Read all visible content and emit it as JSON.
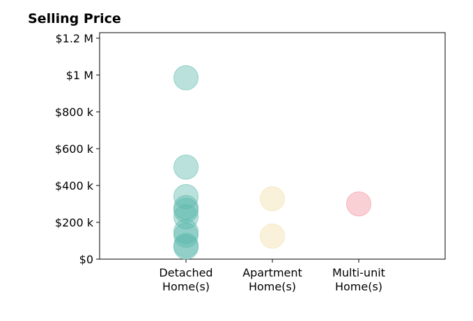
{
  "chart_data": {
    "type": "scatter",
    "title": "Selling Price",
    "xlabel": "",
    "ylabel": "",
    "ylim": [
      0,
      1230000
    ],
    "y_ticks": [
      {
        "value": 0,
        "label": "$0"
      },
      {
        "value": 200000,
        "label": "$200 k"
      },
      {
        "value": 400000,
        "label": "$400 k"
      },
      {
        "value": 600000,
        "label": "$600 k"
      },
      {
        "value": 800000,
        "label": "$800 k"
      },
      {
        "value": 1000000,
        "label": "$1 M"
      },
      {
        "value": 1200000,
        "label": "$1.2 M"
      }
    ],
    "categories": [
      [
        "Detached",
        "Home(s)"
      ],
      [
        "Apartment",
        "Home(s)"
      ],
      [
        "Multi-unit",
        "Home(s)"
      ]
    ],
    "grid": false,
    "series": [
      {
        "category_index": 0,
        "color": "#5bb8ac",
        "values": [
          985000,
          500000,
          340000,
          280000,
          265000,
          230000,
          150000,
          130000,
          75000,
          65000
        ]
      },
      {
        "category_index": 1,
        "color": "#f4dda8",
        "values": [
          328000,
          125000
        ]
      },
      {
        "category_index": 2,
        "color": "#f08f98",
        "values": [
          300000
        ]
      }
    ]
  }
}
